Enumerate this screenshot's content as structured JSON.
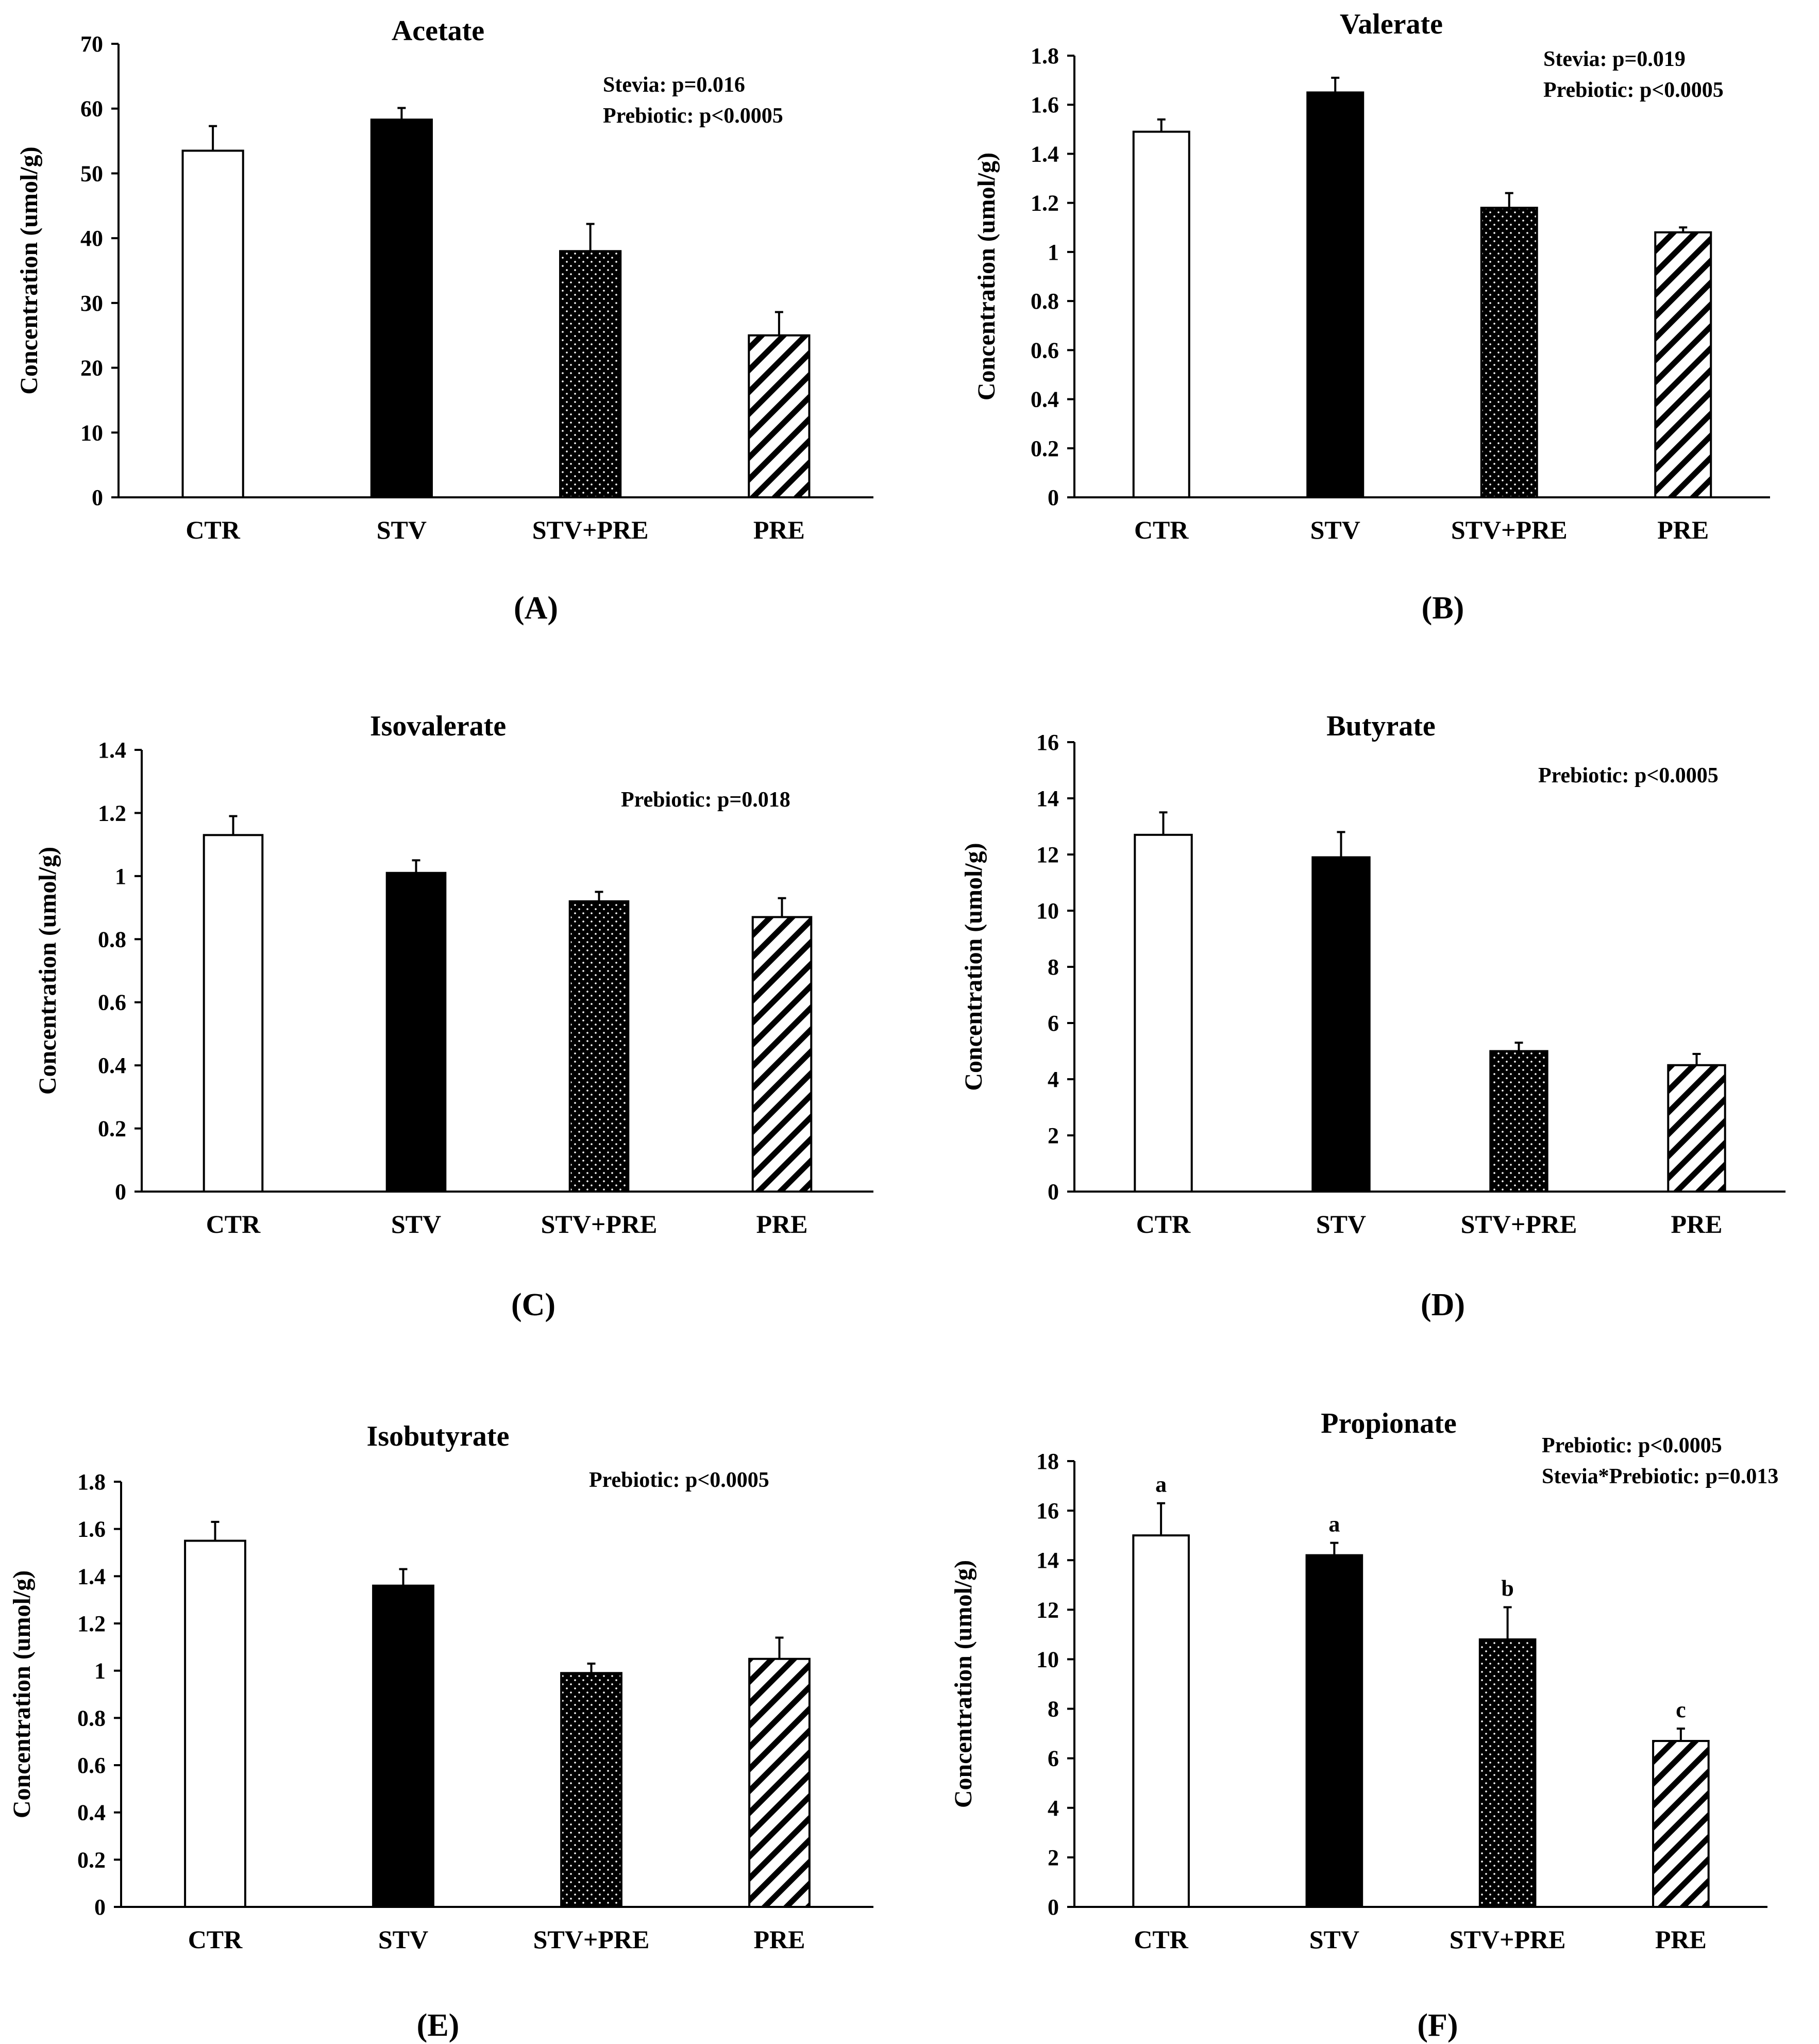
{
  "colors": {
    "ctr": "#ffffff",
    "stv": "#000000",
    "stvpre": "#111111",
    "pre": "#ffffff",
    "ink": "#000000"
  },
  "chart_data": [
    {
      "type": "bar",
      "panel_label": "(A)",
      "title": "Acetate",
      "ylabel": "Concentration (umol/g)",
      "categories": [
        "CTR",
        "STV",
        "STV+PRE",
        "PRE"
      ],
      "values": [
        53.5,
        58.3,
        38.0,
        25.0
      ],
      "errors": [
        3.8,
        1.8,
        4.2,
        3.6
      ],
      "letters": [],
      "ylim": [
        0,
        70
      ],
      "yticks": [
        "0",
        "10",
        "20",
        "30",
        "40",
        "50",
        "60",
        "70"
      ],
      "stats": [
        "Stevia: p=0.016",
        "Prebiotic: p<0.0005"
      ],
      "grid": false
    },
    {
      "type": "bar",
      "panel_label": "(B)",
      "title": "Valerate",
      "ylabel": "Concentration (umol/g)",
      "categories": [
        "CTR",
        "STV",
        "STV+PRE",
        "PRE"
      ],
      "values": [
        1.49,
        1.65,
        1.18,
        1.08
      ],
      "errors": [
        0.05,
        0.06,
        0.06,
        0.02
      ],
      "letters": [],
      "ylim": [
        0,
        1.8
      ],
      "yticks": [
        "0",
        "0.2",
        "0.4",
        "0.6",
        "0.8",
        "1",
        "1.2",
        "1.4",
        "1.6",
        "1.8"
      ],
      "stats": [
        "Stevia: p=0.019",
        "Prebiotic: p<0.0005"
      ],
      "grid": false
    },
    {
      "type": "bar",
      "panel_label": "(C)",
      "title": "Isovalerate",
      "ylabel": "Concentration (umol/g)",
      "categories": [
        "CTR",
        "STV",
        "STV+PRE",
        "PRE"
      ],
      "values": [
        1.13,
        1.01,
        0.92,
        0.87
      ],
      "errors": [
        0.06,
        0.04,
        0.03,
        0.06
      ],
      "letters": [],
      "ylim": [
        0,
        1.4
      ],
      "yticks": [
        "0",
        "0.2",
        "0.4",
        "0.6",
        "0.8",
        "1",
        "1.2",
        "1.4"
      ],
      "stats": [
        "Prebiotic: p=0.018"
      ],
      "grid": false
    },
    {
      "type": "bar",
      "panel_label": "(D)",
      "title": "Butyrate",
      "ylabel": "Concentration (umol/g)",
      "categories": [
        "CTR",
        "STV",
        "STV+PRE",
        "PRE"
      ],
      "values": [
        12.7,
        11.9,
        5.0,
        4.5
      ],
      "errors": [
        0.8,
        0.9,
        0.3,
        0.4
      ],
      "letters": [],
      "ylim": [
        0,
        16
      ],
      "yticks": [
        "0",
        "2",
        "4",
        "6",
        "8",
        "10",
        "12",
        "14",
        "16"
      ],
      "stats": [
        "Prebiotic: p<0.0005"
      ],
      "grid": false
    },
    {
      "type": "bar",
      "panel_label": "(E)",
      "title": "Isobutyrate",
      "ylabel": "Concentration (umol/g)",
      "categories": [
        "CTR",
        "STV",
        "STV+PRE",
        "PRE"
      ],
      "values": [
        1.55,
        1.36,
        0.99,
        1.05
      ],
      "errors": [
        0.08,
        0.07,
        0.04,
        0.09
      ],
      "letters": [],
      "ylim": [
        0,
        1.8
      ],
      "yticks": [
        "0",
        "0.2",
        "0.4",
        "0.6",
        "0.8",
        "1",
        "1.2",
        "1.4",
        "1.6",
        "1.8"
      ],
      "stats": [
        "Prebiotic: p<0.0005"
      ],
      "grid": false
    },
    {
      "type": "bar",
      "panel_label": "(F)",
      "title": "Propionate",
      "ylabel": "Concentration (umol/g)",
      "categories": [
        "CTR",
        "STV",
        "STV+PRE",
        "PRE"
      ],
      "values": [
        15.0,
        14.2,
        10.8,
        6.7
      ],
      "errors": [
        1.3,
        0.5,
        1.3,
        0.5
      ],
      "letters": [
        "a",
        "a",
        "b",
        "c"
      ],
      "ylim": [
        0,
        18
      ],
      "yticks": [
        "0",
        "2",
        "4",
        "6",
        "8",
        "10",
        "12",
        "14",
        "16",
        "18"
      ],
      "stats": [
        "Prebiotic: p<0.0005",
        "Stevia*Prebiotic: p=0.013"
      ],
      "grid": false
    }
  ]
}
